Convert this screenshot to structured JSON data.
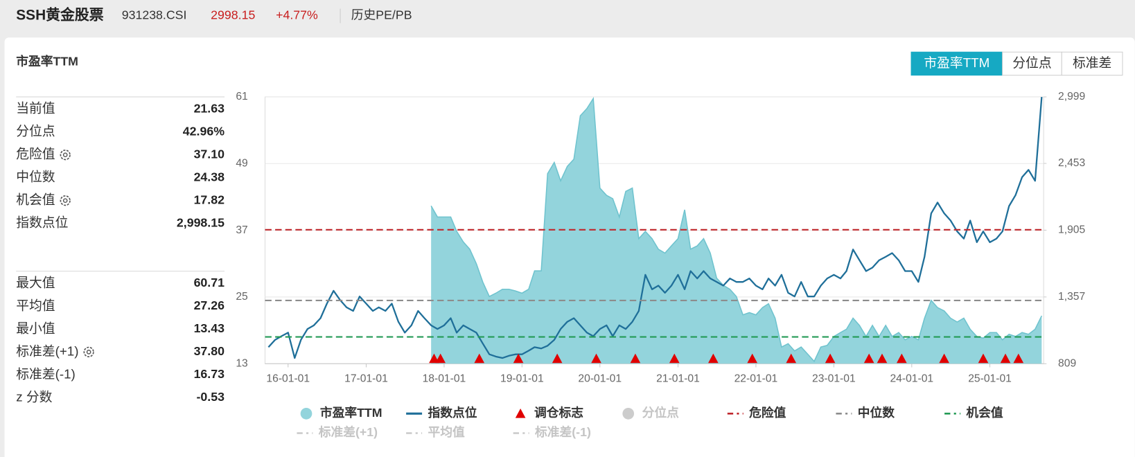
{
  "header": {
    "title": "SSH黄金股票",
    "code": "931238.CSI",
    "price": "2998.15",
    "change": "+4.77%",
    "link": "历史PE/PB"
  },
  "panel": {
    "title": "市盈率TTM"
  },
  "tabs": {
    "items": [
      "市盈率TTM",
      "分位点",
      "标准差"
    ],
    "active": 0
  },
  "stats": {
    "groups": [
      {
        "rows": [
          {
            "label": "当前值",
            "value": "21.63",
            "gear": false
          },
          {
            "label": "分位点",
            "value": "42.96%",
            "gear": false
          },
          {
            "label": "危险值",
            "value": "37.10",
            "gear": true
          },
          {
            "label": "中位数",
            "value": "24.38",
            "gear": false
          },
          {
            "label": "机会值",
            "value": "17.82",
            "gear": true
          },
          {
            "label": "指数点位",
            "value": "2,998.15",
            "gear": false
          }
        ]
      },
      {
        "rows": [
          {
            "label": "最大值",
            "value": "60.71",
            "gear": false
          },
          {
            "label": "平均值",
            "value": "27.26",
            "gear": false
          },
          {
            "label": "最小值",
            "value": "13.43",
            "gear": false
          },
          {
            "label": "标准差(+1)",
            "value": "37.80",
            "gear": true
          },
          {
            "label": "标准差(-1)",
            "value": "16.73",
            "gear": false
          },
          {
            "label": "z 分数",
            "value": "-0.53",
            "gear": false
          }
        ]
      }
    ]
  },
  "chart_data": {
    "type": "area_line",
    "xlim": [
      "15-09-15",
      "25-09-10"
    ],
    "xticks": [
      "16-01-01",
      "17-01-01",
      "18-01-01",
      "19-01-01",
      "20-01-01",
      "21-01-01",
      "22-01-01",
      "23-01-01",
      "24-01-01",
      "25-01-01"
    ],
    "ylim": [
      13,
      61
    ],
    "yticks": [
      13,
      25,
      37,
      49,
      61
    ],
    "y2lim": [
      809,
      2999
    ],
    "y2ticks": [
      809,
      {
        "value": 1357,
        "label": "1,357"
      },
      {
        "value": 1905,
        "label": "1,905"
      },
      {
        "value": 2453,
        "label": "2,453"
      },
      {
        "value": 2999,
        "label": "2,999"
      }
    ],
    "grid": true,
    "x": [
      "15-10-01",
      "15-11-01",
      "15-12-01",
      "16-01-01",
      "16-02-01",
      "16-03-01",
      "16-04-01",
      "16-05-01",
      "16-06-01",
      "16-07-01",
      "16-08-01",
      "16-09-01",
      "16-10-01",
      "16-11-01",
      "16-12-01",
      "17-01-01",
      "17-02-01",
      "17-03-01",
      "17-04-01",
      "17-05-01",
      "17-06-01",
      "17-07-01",
      "17-08-01",
      "17-09-01",
      "17-10-01",
      "17-11-01",
      "17-12-01",
      "18-01-01",
      "18-02-01",
      "18-03-01",
      "18-04-01",
      "18-05-01",
      "18-06-01",
      "18-07-01",
      "18-08-01",
      "18-09-01",
      "18-10-01",
      "18-11-01",
      "18-12-01",
      "19-01-01",
      "19-02-01",
      "19-03-01",
      "19-04-01",
      "19-05-01",
      "19-06-01",
      "19-07-01",
      "19-08-01",
      "19-09-01",
      "19-10-01",
      "19-11-01",
      "19-12-01",
      "20-01-01",
      "20-02-01",
      "20-03-01",
      "20-04-01",
      "20-05-01",
      "20-06-01",
      "20-07-01",
      "20-08-01",
      "20-09-01",
      "20-10-01",
      "20-11-01",
      "20-12-01",
      "21-01-01",
      "21-02-01",
      "21-03-01",
      "21-04-01",
      "21-05-01",
      "21-06-01",
      "21-07-01",
      "21-08-01",
      "21-09-01",
      "21-10-01",
      "21-11-01",
      "21-12-01",
      "22-01-01",
      "22-02-01",
      "22-03-01",
      "22-04-01",
      "22-05-01",
      "22-06-01",
      "22-07-01",
      "22-08-01",
      "22-09-01",
      "22-10-01",
      "22-11-01",
      "22-12-01",
      "23-01-01",
      "23-02-01",
      "23-03-01",
      "23-04-01",
      "23-05-01",
      "23-06-01",
      "23-07-01",
      "23-08-01",
      "23-09-01",
      "23-10-01",
      "23-11-01",
      "23-12-01",
      "24-01-01",
      "24-02-01",
      "24-03-01",
      "24-04-01",
      "24-05-01",
      "24-06-01",
      "24-07-01",
      "24-08-01",
      "24-09-01",
      "24-10-01",
      "24-11-01",
      "24-12-01",
      "25-01-01",
      "25-02-01",
      "25-03-01",
      "25-04-01",
      "25-05-01",
      "25-06-01",
      "25-07-01",
      "25-08-01",
      "25-09-01"
    ],
    "series": [
      {
        "name": "市盈率TTM",
        "kind": "area",
        "color": "#93d4dc",
        "line_color": "#6fc3ce",
        "axis": "y",
        "values": [
          null,
          null,
          null,
          null,
          null,
          null,
          null,
          null,
          null,
          null,
          null,
          null,
          null,
          null,
          null,
          null,
          null,
          null,
          null,
          null,
          null,
          null,
          null,
          null,
          null,
          41.4,
          39.4,
          39.4,
          39.4,
          36.8,
          34.9,
          33.6,
          31,
          27.7,
          25.1,
          25.7,
          26.4,
          26.4,
          26.1,
          25.7,
          26.4,
          29.7,
          29.7,
          47.2,
          49.2,
          45.9,
          48.5,
          49.8,
          57.6,
          58.9,
          60.71,
          44.6,
          43.3,
          42.7,
          39.4,
          44,
          44.6,
          35.5,
          36.8,
          35.5,
          33.6,
          32.9,
          34.2,
          35.5,
          40.7,
          33.6,
          34.2,
          35.5,
          32.9,
          28.4,
          27.1,
          26.4,
          25.1,
          21.8,
          22.2,
          21.8,
          23.1,
          23.8,
          21.2,
          16,
          16.6,
          15.3,
          16,
          14.7,
          13.43,
          16,
          16.3,
          17.9,
          18.6,
          19.2,
          21.2,
          19.9,
          17.9,
          19.9,
          17.9,
          19.9,
          17.9,
          18.6,
          17.3,
          17.9,
          17.3,
          21.2,
          24.4,
          23.1,
          22.5,
          21.2,
          20.5,
          21.2,
          19.2,
          17.9,
          17.6,
          18.6,
          18.6,
          17.3,
          18.3,
          17.9,
          18.6,
          18.3,
          19.2,
          21.63
        ]
      },
      {
        "name": "指数点位",
        "kind": "line",
        "color": "#1f6f99",
        "axis": "y2",
        "values": [
          945,
          1005,
          1035,
          1064,
          856,
          1005,
          1094,
          1124,
          1183,
          1302,
          1408,
          1331,
          1272,
          1242,
          1361,
          1302,
          1242,
          1272,
          1242,
          1302,
          1153,
          1064,
          1124,
          1242,
          1183,
          1124,
          1094,
          1124,
          1183,
          1064,
          1124,
          1094,
          1064,
          975,
          886,
          868,
          856,
          874,
          886,
          886,
          916,
          945,
          934,
          957,
          1005,
          1094,
          1153,
          1183,
          1124,
          1064,
          1035,
          1094,
          1124,
          1035,
          1124,
          1094,
          1153,
          1242,
          1539,
          1420,
          1450,
          1391,
          1450,
          1539,
          1420,
          1569,
          1509,
          1569,
          1509,
          1480,
          1450,
          1509,
          1480,
          1480,
          1509,
          1450,
          1420,
          1509,
          1450,
          1539,
          1391,
          1361,
          1480,
          1361,
          1361,
          1450,
          1509,
          1539,
          1509,
          1569,
          1747,
          1658,
          1569,
          1598,
          1658,
          1687,
          1717,
          1658,
          1569,
          1569,
          1480,
          1687,
          2043,
          2132,
          2043,
          1984,
          1895,
          1836,
          1984,
          1806,
          1895,
          1806,
          1836,
          1895,
          2103,
          2192,
          2340,
          2400,
          2310,
          2998.15
        ]
      }
    ],
    "markers": {
      "name": "调仓标志",
      "color": "#e00000",
      "x": [
        "17-11-15",
        "17-12-15",
        "18-06-15",
        "18-12-15",
        "19-06-15",
        "19-12-15",
        "20-06-15",
        "20-12-15",
        "21-06-15",
        "21-12-15",
        "22-06-15",
        "22-12-15",
        "23-06-15",
        "23-08-15",
        "23-11-15",
        "24-06-01",
        "24-12-01",
        "25-03-15",
        "25-05-15"
      ]
    },
    "reference_lines": [
      {
        "name": "危险值",
        "value": 37.1,
        "color": "#c0282d",
        "hidden": false
      },
      {
        "name": "中位数",
        "value": 24.38,
        "color": "#8c8c8c",
        "hidden": false
      },
      {
        "name": "机会值",
        "value": 17.82,
        "color": "#239a55",
        "hidden": false
      },
      {
        "name": "标准差(+1)",
        "value": 37.8,
        "color": "#cccccc",
        "hidden": true
      },
      {
        "name": "平均值",
        "value": 27.26,
        "color": "#cccccc",
        "hidden": true
      },
      {
        "name": "标准差(-1)",
        "value": 16.73,
        "color": "#cccccc",
        "hidden": true
      }
    ],
    "extra_legend": [
      {
        "name": "分位点",
        "color": "#cccccc",
        "hidden": true
      }
    ]
  }
}
